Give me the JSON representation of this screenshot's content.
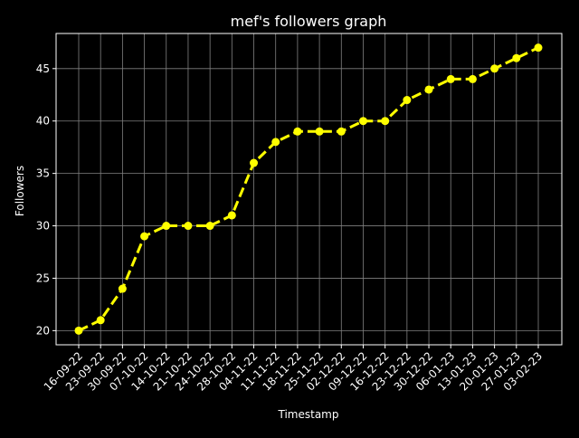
{
  "chart_data": {
    "type": "line",
    "title": "mef's followers graph",
    "xlabel": "Timestamp",
    "ylabel": "Followers",
    "categories": [
      "16-09-22",
      "23-09-22",
      "30-09-22",
      "07-10-22",
      "14-10-22",
      "21-10-22",
      "24-10-22",
      "28-10-22",
      "04-11-22",
      "11-11-22",
      "18-11-22",
      "25-11-22",
      "02-12-22",
      "09-12-22",
      "16-12-22",
      "23-12-22",
      "30-12-22",
      "06-01-23",
      "13-01-23",
      "20-01-23",
      "27-01-23",
      "03-02-23"
    ],
    "series": [
      {
        "values": [
          20,
          21,
          24,
          29,
          30,
          30,
          30,
          31,
          36,
          38,
          39,
          39,
          39,
          40,
          40,
          42,
          43,
          44,
          44,
          45,
          46,
          47
        ]
      }
    ],
    "ylim": [
      18.65,
      48.35
    ],
    "yticks": [
      20,
      25,
      30,
      35,
      40,
      45
    ],
    "grid": true,
    "colors": {
      "background": "#000000",
      "text": "#ffffff",
      "grid": "#808080",
      "line": "#ffff00"
    }
  }
}
